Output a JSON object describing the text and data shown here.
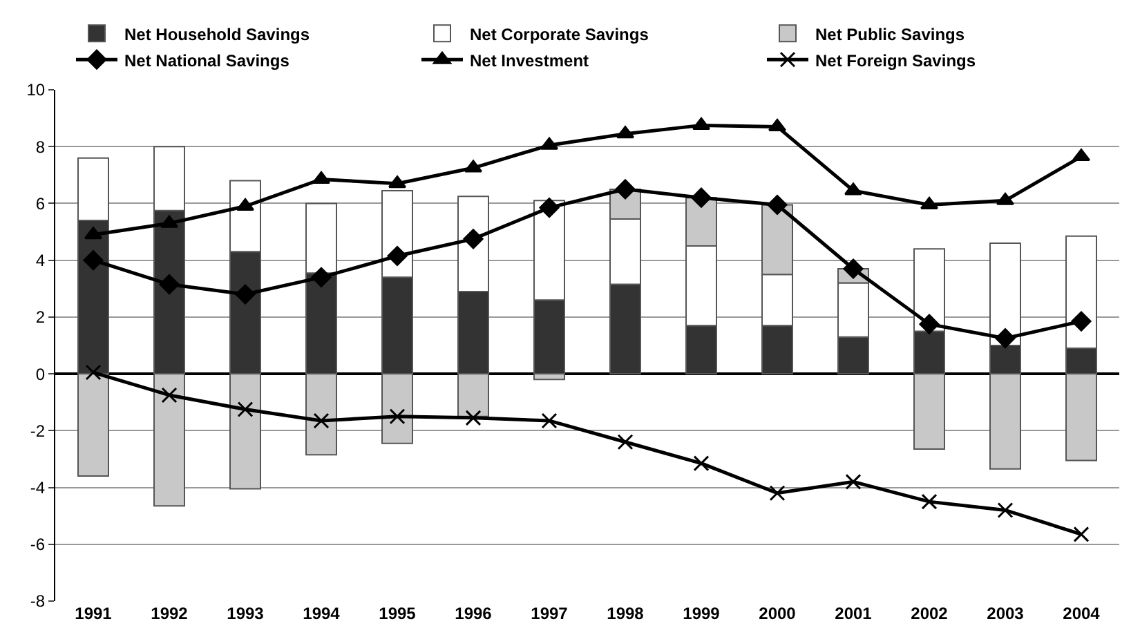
{
  "chart_data": {
    "type": "bar",
    "stacked": true,
    "categories": [
      "1991",
      "1992",
      "1993",
      "1994",
      "1995",
      "1996",
      "1997",
      "1998",
      "1999",
      "2000",
      "2001",
      "2002",
      "2003",
      "2004"
    ],
    "series": [
      {
        "name": "Net Household Savings",
        "color": "#333333",
        "values": [
          5.4,
          5.75,
          4.3,
          3.55,
          3.4,
          2.9,
          2.6,
          3.15,
          1.7,
          1.7,
          1.3,
          1.5,
          1.0,
          0.9
        ]
      },
      {
        "name": "Net Corporate Savings",
        "color": "#ffffff",
        "values": [
          2.2,
          2.25,
          2.5,
          2.45,
          3.05,
          3.35,
          3.5,
          2.3,
          2.8,
          1.8,
          1.9,
          2.9,
          3.6,
          3.95
        ]
      },
      {
        "name": "Net Public Savings",
        "color": "#c8c8c8",
        "values": [
          -3.6,
          -4.65,
          -4.05,
          -2.85,
          -2.45,
          -1.5,
          -0.2,
          1.05,
          1.7,
          2.45,
          0.5,
          -2.65,
          -3.35,
          -3.05
        ]
      },
      {
        "name": "Net National Savings",
        "type": "line",
        "color": "#000000",
        "marker": "diamond",
        "values": [
          4.0,
          3.15,
          2.8,
          3.4,
          4.15,
          4.75,
          5.85,
          6.5,
          6.2,
          5.95,
          3.7,
          1.75,
          1.25,
          1.85
        ]
      },
      {
        "name": "Net Investment",
        "type": "line",
        "color": "#000000",
        "marker": "triangle",
        "values": [
          4.9,
          5.3,
          5.9,
          6.85,
          6.7,
          7.25,
          8.05,
          8.45,
          8.75,
          8.7,
          6.45,
          5.95,
          6.1,
          7.65
        ]
      },
      {
        "name": "Net Foreign Savings",
        "type": "line",
        "color": "#000000",
        "marker": "cross",
        "values": [
          0.05,
          -0.75,
          -1.25,
          -1.65,
          -1.5,
          -1.55,
          -1.65,
          -2.4,
          -3.15,
          -4.2,
          -3.8,
          -4.5,
          -4.8,
          -5.65
        ]
      }
    ],
    "ylim": [
      -8,
      10
    ],
    "yticks": [
      -8,
      -6,
      -4,
      -2,
      0,
      2,
      4,
      6,
      8,
      10
    ],
    "grid": "y",
    "legend": "top"
  }
}
